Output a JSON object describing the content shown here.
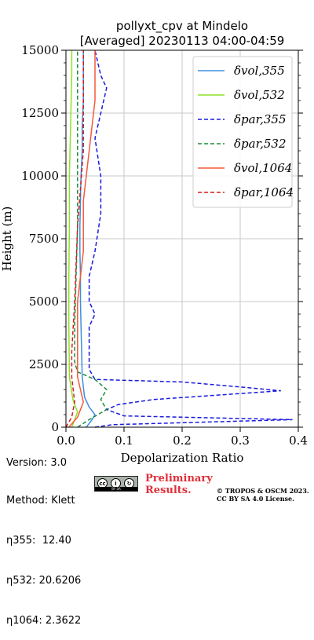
{
  "chart_data": {
    "type": "line",
    "title_line1": "pollyxt_cpv at Mindelo",
    "title_line2": "[Averaged] 20230113 04:00-04:59",
    "xlabel": "Depolarization Ratio",
    "ylabel": "Height (m)",
    "xlim": [
      0,
      0.4
    ],
    "ylim": [
      0,
      15000
    ],
    "xticks": [
      "0.0",
      "0.1",
      "0.2",
      "0.3",
      "0.4"
    ],
    "yticks": [
      "0",
      "2500",
      "5000",
      "7500",
      "10000",
      "12500",
      "15000"
    ],
    "grid": true,
    "legend_position": "top-right",
    "legend": [
      {
        "label": "δvol,355",
        "color": "#3b8fe0",
        "style": "solid"
      },
      {
        "label": "δvol,532",
        "color": "#8ee02a",
        "style": "solid"
      },
      {
        "label": "δpar,355",
        "color": "#1a1ae0",
        "style": "dashed"
      },
      {
        "label": "δpar,532",
        "color": "#1e8c3c",
        "style": "dashed"
      },
      {
        "label": "δvol,1064",
        "color": "#f35a3a",
        "style": "solid"
      },
      {
        "label": "δpar,1064",
        "color": "#d21e1e",
        "style": "dashed"
      }
    ],
    "series": [
      {
        "name": "δvol,355",
        "points": [
          [
            0.035,
            0
          ],
          [
            0.045,
            300
          ],
          [
            0.05,
            500
          ],
          [
            0.04,
            800
          ],
          [
            0.032,
            1200
          ],
          [
            0.028,
            2000
          ],
          [
            0.027,
            3000
          ],
          [
            0.026,
            4000
          ],
          [
            0.025,
            5000
          ],
          [
            0.025,
            6000
          ],
          [
            0.024,
            7000
          ],
          [
            0.024,
            8000
          ],
          [
            0.025,
            9000
          ],
          [
            0.026,
            10000
          ],
          [
            0.028,
            11000
          ],
          [
            0.028,
            12000
          ],
          [
            0.03,
            13000
          ],
          [
            0.03,
            14000
          ],
          [
            0.03,
            15000
          ]
        ]
      },
      {
        "name": "δvol,532",
        "points": [
          [
            0.01,
            0
          ],
          [
            0.02,
            600
          ],
          [
            0.012,
            1100
          ],
          [
            0.006,
            2000
          ],
          [
            0.005,
            4000
          ],
          [
            0.005,
            6000
          ],
          [
            0.006,
            8000
          ],
          [
            0.006,
            10000
          ],
          [
            0.008,
            12000
          ],
          [
            0.01,
            14000
          ],
          [
            0.01,
            15000
          ]
        ]
      },
      {
        "name": "δpar,355",
        "points": [
          [
            0.05,
            0
          ],
          [
            0.08,
            100
          ],
          [
            0.39,
            300
          ],
          [
            0.1,
            450
          ],
          [
            0.07,
            700
          ],
          [
            0.09,
            900
          ],
          [
            0.15,
            1100
          ],
          [
            0.37,
            1450
          ],
          [
            0.3,
            1600
          ],
          [
            0.2,
            1800
          ],
          [
            0.05,
            1900
          ],
          [
            0.04,
            2300
          ],
          [
            0.04,
            3000
          ],
          [
            0.04,
            4000
          ],
          [
            0.05,
            4500
          ],
          [
            0.04,
            5000
          ],
          [
            0.04,
            6000
          ],
          [
            0.05,
            7000
          ],
          [
            0.06,
            8500
          ],
          [
            0.06,
            10000
          ],
          [
            0.05,
            11500
          ],
          [
            0.07,
            13500
          ],
          [
            0.06,
            14000
          ],
          [
            0.05,
            15000
          ]
        ]
      },
      {
        "name": "δpar,532",
        "points": [
          [
            0.02,
            0
          ],
          [
            0.04,
            300
          ],
          [
            0.07,
            700
          ],
          [
            0.06,
            1100
          ],
          [
            0.07,
            1500
          ],
          [
            0.05,
            1900
          ],
          [
            0.02,
            2200
          ],
          [
            0.015,
            2600
          ],
          [
            0.015,
            4000
          ],
          [
            0.02,
            8000
          ],
          [
            0.02,
            12000
          ],
          [
            0.02,
            15000
          ]
        ]
      },
      {
        "name": "δvol,1064",
        "points": [
          [
            0.005,
            0
          ],
          [
            0.02,
            400
          ],
          [
            0.03,
            1000
          ],
          [
            0.025,
            1500
          ],
          [
            0.02,
            2000
          ],
          [
            0.02,
            3000
          ],
          [
            0.02,
            5000
          ],
          [
            0.03,
            7000
          ],
          [
            0.03,
            9000
          ],
          [
            0.04,
            11000
          ],
          [
            0.05,
            13000
          ],
          [
            0.05,
            15000
          ]
        ]
      },
      {
        "name": "δpar,1064",
        "points": [
          [
            0.0,
            0
          ],
          [
            0.01,
            400
          ],
          [
            0.015,
            1000
          ],
          [
            0.01,
            2000
          ],
          [
            0.01,
            3000
          ],
          [
            0.015,
            5000
          ],
          [
            0.02,
            8000
          ],
          [
            0.03,
            11000
          ],
          [
            0.03,
            15000
          ]
        ]
      }
    ]
  },
  "info": {
    "version": "Version: 3.0",
    "method": "Method: Klett",
    "eta355": "η355:  12.40",
    "eta532": "η532: 20.6206",
    "eta1064": "η1064: 2.3622"
  },
  "footer": {
    "preliminary_line1": "Preliminary",
    "preliminary_line2": "Results.",
    "copyright_line1": "© TROPOS & OSCM 2023.",
    "copyright_line2": "CC BY SA 4.0 License.",
    "cc_label": "BY SA"
  }
}
